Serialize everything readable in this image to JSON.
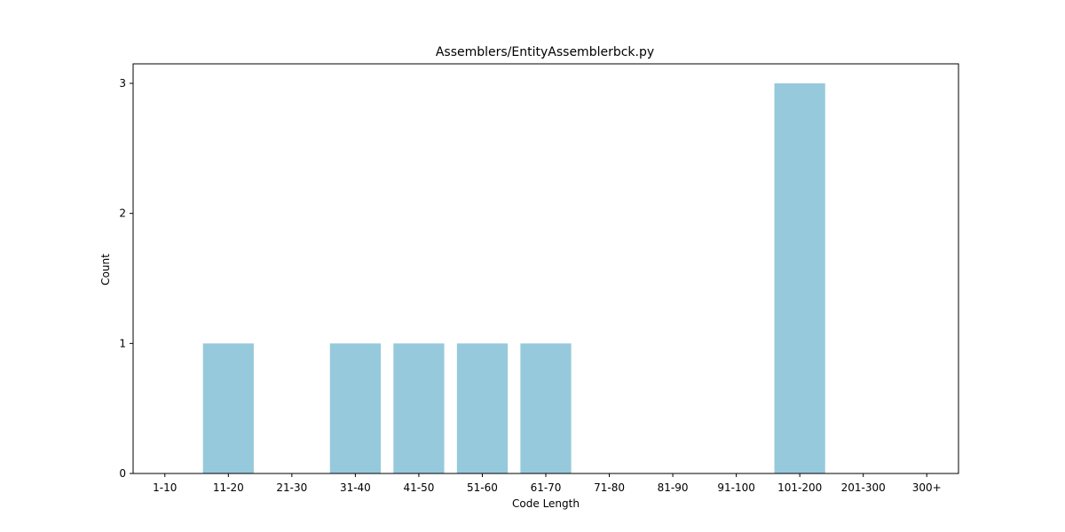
{
  "chart_data": {
    "type": "bar",
    "title": "Assemblers/EntityAssemblerbck.py",
    "xlabel": "Code Length",
    "ylabel": "Count",
    "categories": [
      "1-10",
      "11-20",
      "21-30",
      "31-40",
      "41-50",
      "51-60",
      "61-70",
      "71-80",
      "81-90",
      "91-100",
      "101-200",
      "201-300",
      "300+"
    ],
    "values": [
      0,
      1,
      0,
      1,
      1,
      1,
      1,
      0,
      0,
      0,
      3,
      0,
      0
    ],
    "yticks": [
      0,
      1,
      2,
      3
    ],
    "ylim": [
      0,
      3.15
    ],
    "bar_color": "#96c9dc",
    "grid": false,
    "legend": "none"
  }
}
